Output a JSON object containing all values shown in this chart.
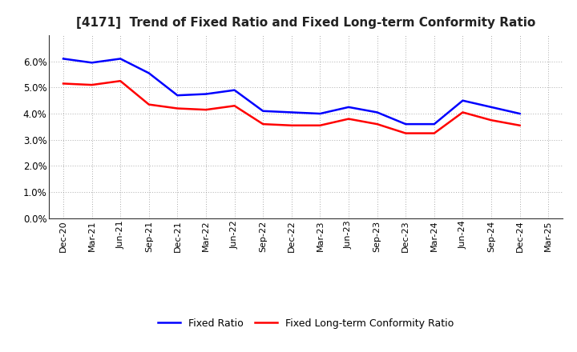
{
  "title": "[4171]  Trend of Fixed Ratio and Fixed Long-term Conformity Ratio",
  "x_labels": [
    "Dec-20",
    "Mar-21",
    "Jun-21",
    "Sep-21",
    "Dec-21",
    "Mar-22",
    "Jun-22",
    "Sep-22",
    "Dec-22",
    "Mar-23",
    "Jun-23",
    "Sep-23",
    "Dec-23",
    "Mar-24",
    "Jun-24",
    "Sep-24",
    "Dec-24",
    "Mar-25"
  ],
  "fixed_ratio": [
    6.1,
    5.95,
    6.1,
    5.55,
    4.7,
    4.75,
    4.9,
    4.1,
    4.05,
    4.0,
    4.25,
    4.05,
    3.6,
    3.6,
    4.5,
    4.25,
    4.0,
    null
  ],
  "fixed_lt_ratio": [
    5.15,
    5.1,
    5.25,
    4.35,
    4.2,
    4.15,
    4.3,
    3.6,
    3.55,
    3.55,
    3.8,
    3.6,
    3.25,
    3.25,
    4.05,
    3.75,
    3.55,
    null
  ],
  "blue_color": "#0000FF",
  "red_color": "#FF0000",
  "ylim_min": 0.0,
  "ylim_max": 0.07,
  "yticks": [
    0.0,
    0.01,
    0.02,
    0.03,
    0.04,
    0.05,
    0.06
  ],
  "background_color": "#FFFFFF",
  "plot_bg_color": "#FFFFFF",
  "grid_color": "#888888",
  "legend_fixed_ratio": "Fixed Ratio",
  "legend_fixed_lt_ratio": "Fixed Long-term Conformity Ratio",
  "title_fontsize": 11,
  "tick_fontsize": 8,
  "legend_fontsize": 9,
  "linewidth": 1.8
}
